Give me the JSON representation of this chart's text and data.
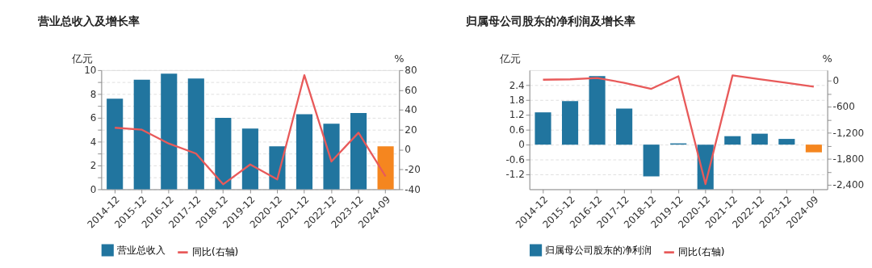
{
  "chart_data": [
    {
      "type": "bar",
      "title": "营业总收入及增长率",
      "categories": [
        "2014-12",
        "2015-12",
        "2016-12",
        "2017-12",
        "2018-12",
        "2019-12",
        "2020-12",
        "2021-12",
        "2022-12",
        "2023-12",
        "2024-09"
      ],
      "ylabel": "亿元",
      "y2label": "%",
      "ylim": [
        0,
        10
      ],
      "yticks": [
        0,
        {
          "value": 1,
          "label": null
        },
        2,
        {
          "value": 3,
          "label": null
        },
        4,
        {
          "value": 5,
          "label": null
        },
        6,
        {
          "value": 7,
          "label": null
        },
        8,
        {
          "value": 9,
          "label": null
        },
        10
      ],
      "y2lim": [
        -40,
        80
      ],
      "y2ticks": [
        -40,
        -20,
        0,
        20,
        40,
        60,
        80
      ],
      "grid": "y",
      "legend": "bottom",
      "series": [
        {
          "name": "营业总收入",
          "color": "#21759f",
          "colors": [
            "#21759f",
            "#21759f",
            "#21759f",
            "#21759f",
            "#21759f",
            "#21759f",
            "#21759f",
            "#21759f",
            "#21759f",
            "#21759f",
            "#f5861f"
          ],
          "values": [
            7.6,
            9.2,
            9.7,
            9.3,
            6.0,
            5.1,
            3.6,
            6.3,
            5.5,
            6.4,
            3.6
          ]
        },
        {
          "name": "同比(右轴)",
          "type": "line",
          "color": "#e85a5a",
          "axis": "y2",
          "values": [
            22,
            20,
            6,
            -4,
            -35,
            -15,
            -30,
            75,
            -12,
            17,
            -27
          ]
        }
      ]
    },
    {
      "type": "bar",
      "title": "归属母公司股东的净利润及增长率",
      "categories": [
        "2014-12",
        "2015-12",
        "2016-12",
        "2017-12",
        "2018-12",
        "2019-12",
        "2020-12",
        "2021-12",
        "2022-12",
        "2023-12",
        "2024-09"
      ],
      "ylabel": "亿元",
      "y2label": "%",
      "ylim": [
        -1.8,
        3.0
      ],
      "yticks": [
        -1.2,
        -0.6,
        0,
        0.6,
        1.2,
        1.8,
        2.4
      ],
      "y2lim": [
        -2500,
        240
      ],
      "y2ticks": [
        {
          "value": -2400,
          "label": "-2,400"
        },
        {
          "value": -2100,
          "label": null
        },
        {
          "value": -1800,
          "label": "-1,800"
        },
        {
          "value": -1500,
          "label": null
        },
        {
          "value": -1200,
          "label": "-1,200"
        },
        {
          "value": -900,
          "label": null
        },
        -600,
        {
          "value": -300,
          "label": null
        },
        0
      ],
      "grid": "y",
      "legend": "bottom",
      "series": [
        {
          "name": "归属母公司股东的净利润",
          "color": "#21759f",
          "colors": [
            "#21759f",
            "#21759f",
            "#21759f",
            "#21759f",
            "#21759f",
            "#21759f",
            "#21759f",
            "#21759f",
            "#21759f",
            "#21759f",
            "#f5861f"
          ],
          "values": [
            1.3,
            1.75,
            2.76,
            1.45,
            -1.28,
            0.05,
            -1.8,
            0.34,
            0.44,
            0.23,
            -0.31
          ]
        },
        {
          "name": "同比(右轴)",
          "type": "line",
          "color": "#e85a5a",
          "axis": "y2",
          "values": [
            20,
            30,
            60,
            -50,
            -190,
            100,
            -2380,
            120,
            30,
            -50,
            -140
          ]
        }
      ]
    }
  ]
}
